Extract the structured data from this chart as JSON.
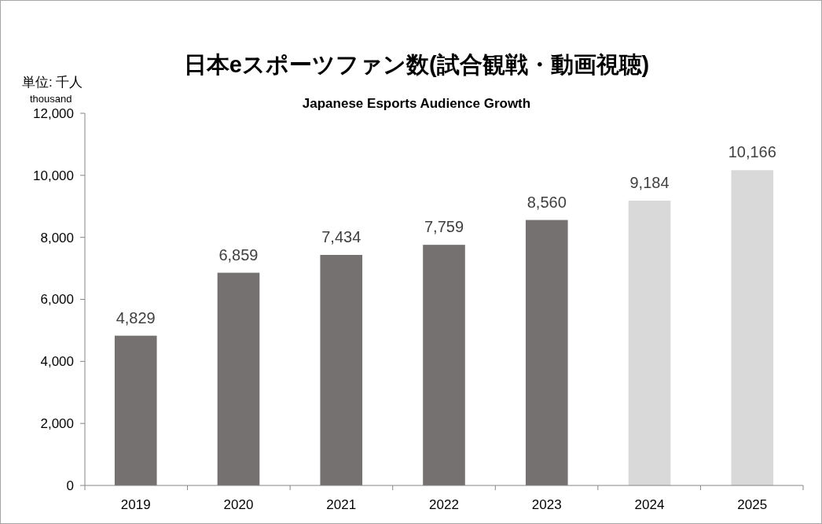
{
  "chart_data": {
    "type": "bar",
    "title": "日本eスポーツファン数(試合観戦・動画視聴)",
    "subtitle": "Japanese Esports Audience Growth",
    "ylabel": "単位: 千人",
    "annotations": [
      "thousand"
    ],
    "categories": [
      "2019",
      "2020",
      "2021",
      "2022",
      "2023",
      "2024",
      "2025"
    ],
    "values": [
      4829,
      6859,
      7434,
      7759,
      8560,
      9184,
      10166
    ],
    "colors": [
      "#767171",
      "#767171",
      "#767171",
      "#767171",
      "#767171",
      "#d9d9d9",
      "#d9d9d9"
    ],
    "ylim": [
      0,
      12000
    ],
    "yticks": [
      {
        "value": 0,
        "label": "0"
      },
      {
        "value": 2000,
        "label": "2,000"
      },
      {
        "value": 4000,
        "label": "4,000"
      },
      {
        "value": 6000,
        "label": "6,000"
      },
      {
        "value": 8000,
        "label": "8,000"
      },
      {
        "value": 10000,
        "label": "10,000"
      },
      {
        "value": 12000,
        "label": "12,000"
      }
    ],
    "value_labels": [
      "4,829",
      "6,859",
      "7,434",
      "7,759",
      "8,560",
      "9,184",
      "10,166"
    ],
    "grid": false
  }
}
